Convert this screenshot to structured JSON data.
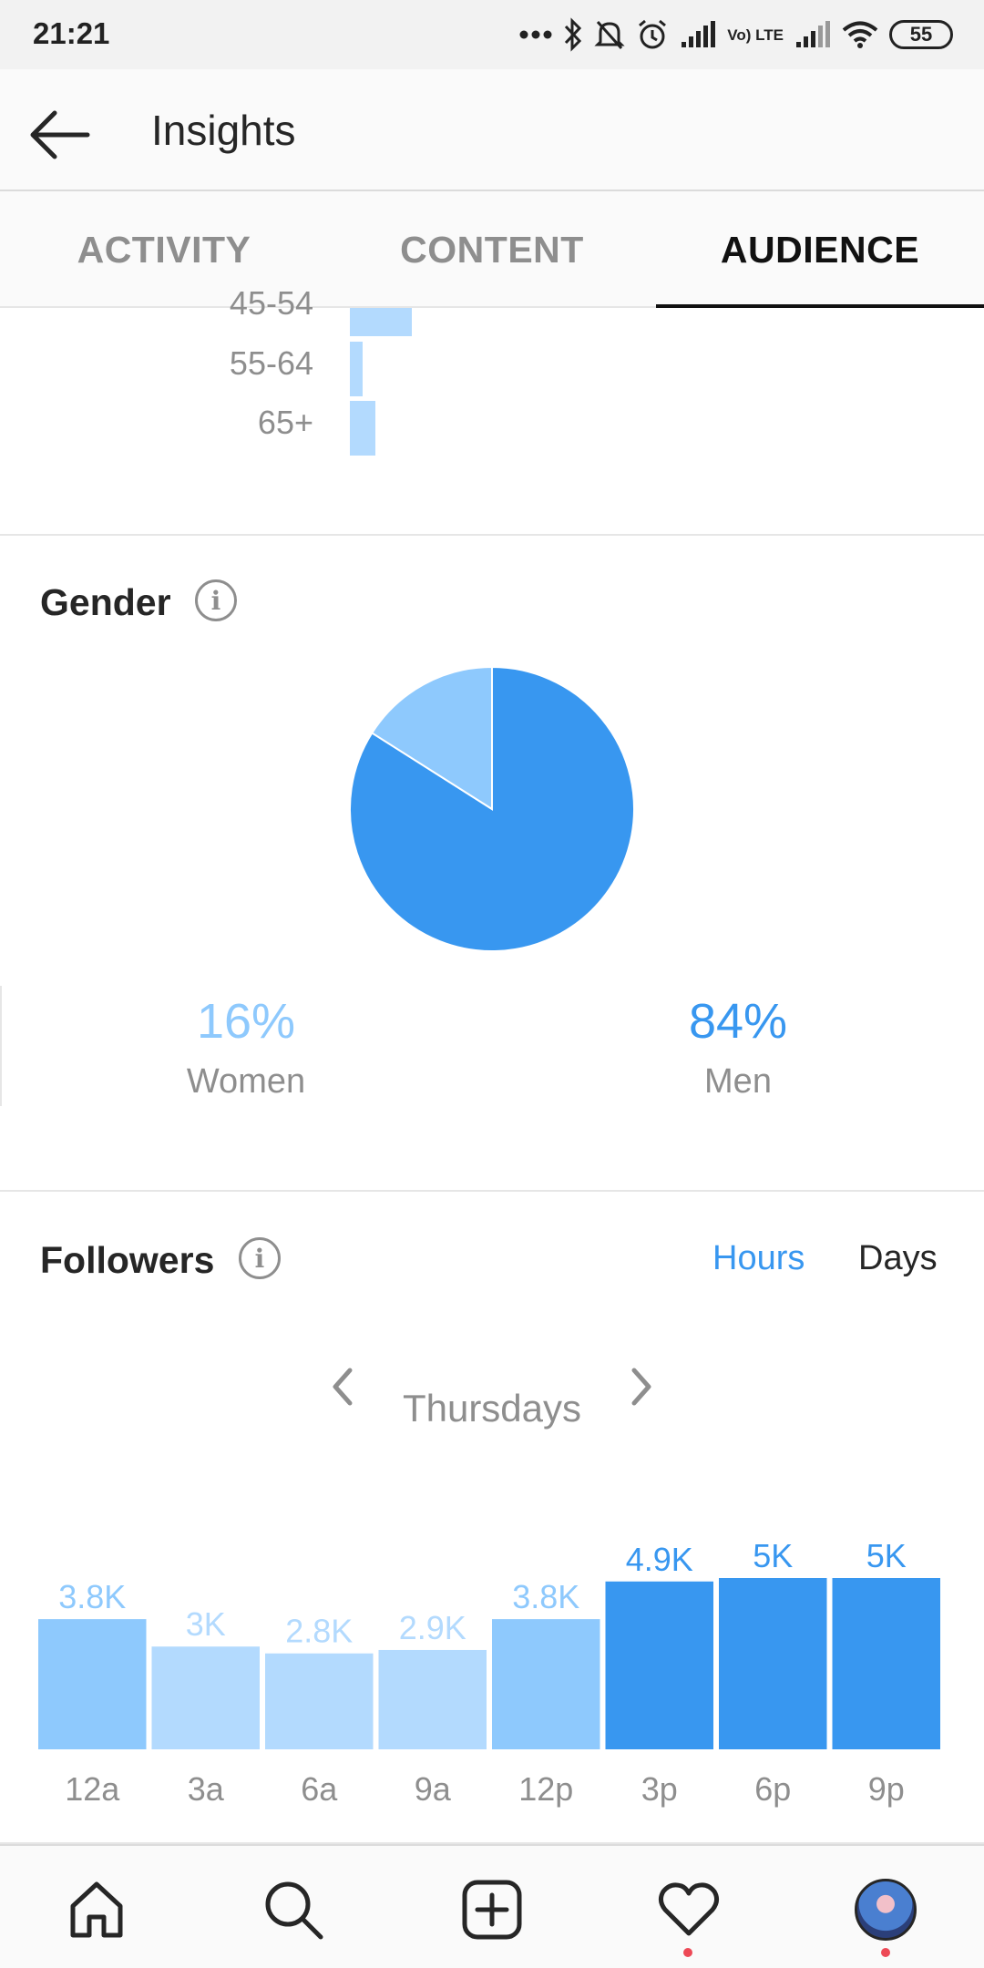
{
  "status_bar": {
    "time": "21:21",
    "battery": "55",
    "network_label": "Vo) LTE",
    "icons": [
      "more-dots-icon",
      "bluetooth-icon",
      "mute-bell-icon",
      "alarm-icon",
      "signal-icon",
      "volte-icon",
      "signal-icon",
      "wifi-icon",
      "battery-icon"
    ]
  },
  "header": {
    "title": "Insights",
    "back_icon": "back-arrow-icon"
  },
  "tabs": [
    {
      "label": "ACTIVITY",
      "active": false
    },
    {
      "label": "CONTENT",
      "active": false
    },
    {
      "label": "AUDIENCE",
      "active": true
    }
  ],
  "age_section": {
    "partial_label": "45-54",
    "rows": [
      {
        "label": "55-64"
      },
      {
        "label": "65+"
      }
    ]
  },
  "gender": {
    "title": "Gender",
    "info_icon": "info-icon",
    "women": {
      "percent": "16%",
      "label": "Women",
      "value": 16,
      "color": "#8ec9fd"
    },
    "men": {
      "percent": "84%",
      "label": "Men",
      "value": 84,
      "color": "#3897f0"
    }
  },
  "followers": {
    "title": "Followers",
    "info_icon": "info-icon",
    "toggle": {
      "hours": "Hours",
      "days": "Days",
      "selected": "Hours"
    },
    "day_nav": {
      "label": "Thursdays",
      "prev_icon": "chevron-left-icon",
      "next_icon": "chevron-right-icon"
    }
  },
  "chart_data": {
    "type": "bar",
    "categories": [
      "12a",
      "3a",
      "6a",
      "9a",
      "12p",
      "3p",
      "6p",
      "9p"
    ],
    "values": [
      3800,
      3000,
      2800,
      2900,
      3800,
      4900,
      5000,
      5000
    ],
    "data_labels": [
      "3.8K",
      "3K",
      "2.8K",
      "2.9K",
      "3.8K",
      "4.9K",
      "5K",
      "5K"
    ],
    "colors": {
      "high": "#3897f0",
      "mid": "#8ec9fd",
      "low": "#b3dafe"
    }
  },
  "bottom_nav": {
    "items": [
      "home-icon",
      "search-icon",
      "new-post-icon",
      "activity-heart-icon",
      "profile-avatar"
    ],
    "accent": "#ed4956"
  }
}
